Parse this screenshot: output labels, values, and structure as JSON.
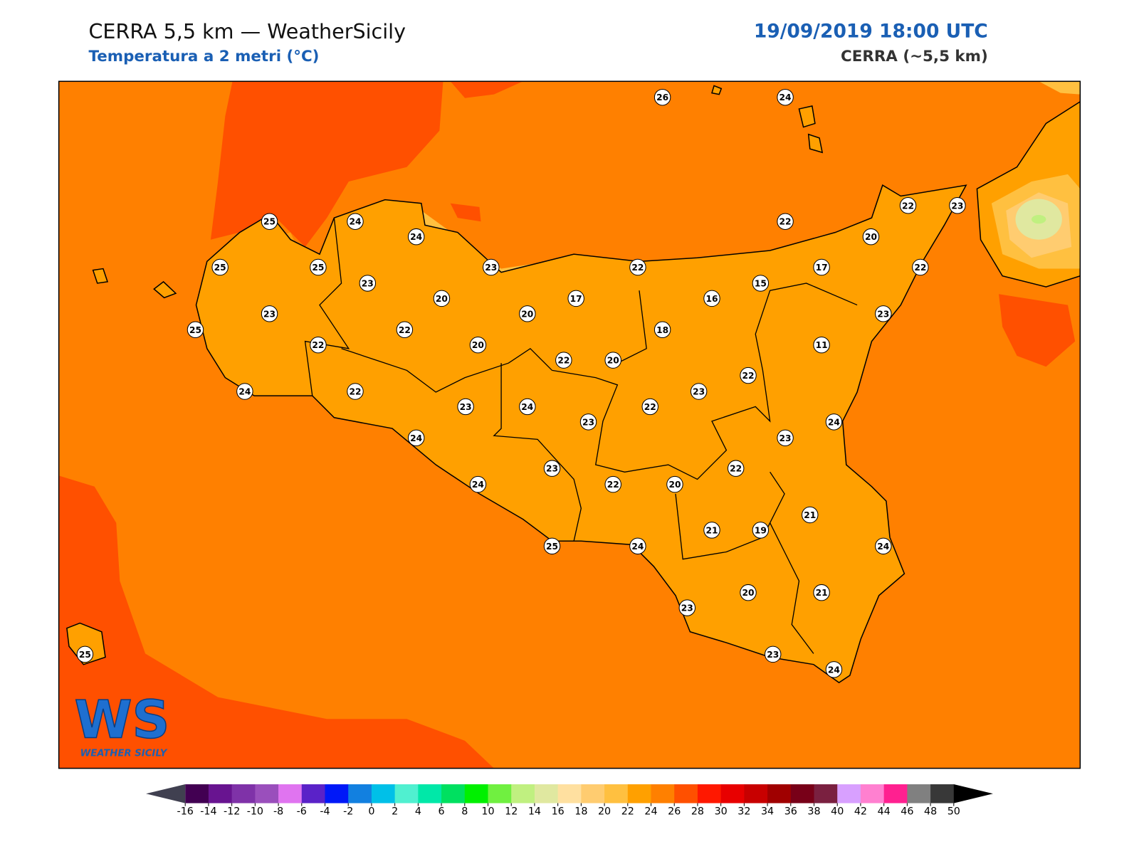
{
  "header": {
    "title": "CERRA 5,5 km — WeatherSicily",
    "subtitle": "Temperatura a 2 metri (°C)",
    "datetime": "19/09/2019 18:00 UTC",
    "model": "CERRA (~5,5 km)"
  },
  "stations": [
    26,
    24,
    25,
    24,
    24,
    25,
    25,
    23,
    23,
    22,
    22,
    22,
    23,
    20,
    17,
    22,
    15,
    16,
    17,
    20,
    20,
    23,
    25,
    22,
    22,
    20,
    18,
    23,
    11,
    22,
    20,
    22,
    24,
    22,
    23,
    24,
    23,
    22,
    23,
    24,
    23,
    24,
    23,
    22,
    24,
    22,
    20,
    21,
    21,
    19,
    25,
    24,
    24,
    23,
    20,
    21,
    23,
    24,
    25
  ],
  "logo": {
    "mark": "WS",
    "text": "WEATHER SICILY"
  },
  "colorbar": {
    "ticks": [
      -16,
      -14,
      -12,
      -10,
      -8,
      -6,
      -4,
      -2,
      0,
      2,
      4,
      6,
      8,
      10,
      12,
      14,
      16,
      18,
      20,
      22,
      24,
      26,
      28,
      30,
      32,
      34,
      36,
      38,
      40,
      42,
      44,
      46,
      48,
      50
    ],
    "colors": [
      "#420052",
      "#681490",
      "#7f32a8",
      "#9a4fbc",
      "#e074f0",
      "#5a22c8",
      "#0018f8",
      "#1280e0",
      "#00c0e8",
      "#50f0d0",
      "#00e8a8",
      "#00e060",
      "#00f000",
      "#70f040",
      "#c0f080",
      "#e0e8a0",
      "#ffe0a0",
      "#ffcc70",
      "#ffc040",
      "#ffa000",
      "#ff8000",
      "#ff5000",
      "#ff1800",
      "#e80000",
      "#c80000",
      "#a00000",
      "#780018",
      "#7a2040",
      "#d8a0ff",
      "#ff80d0",
      "#ff2090",
      "#808080",
      "#383838"
    ],
    "under_color": "#404050",
    "over_color": "#000000"
  }
}
